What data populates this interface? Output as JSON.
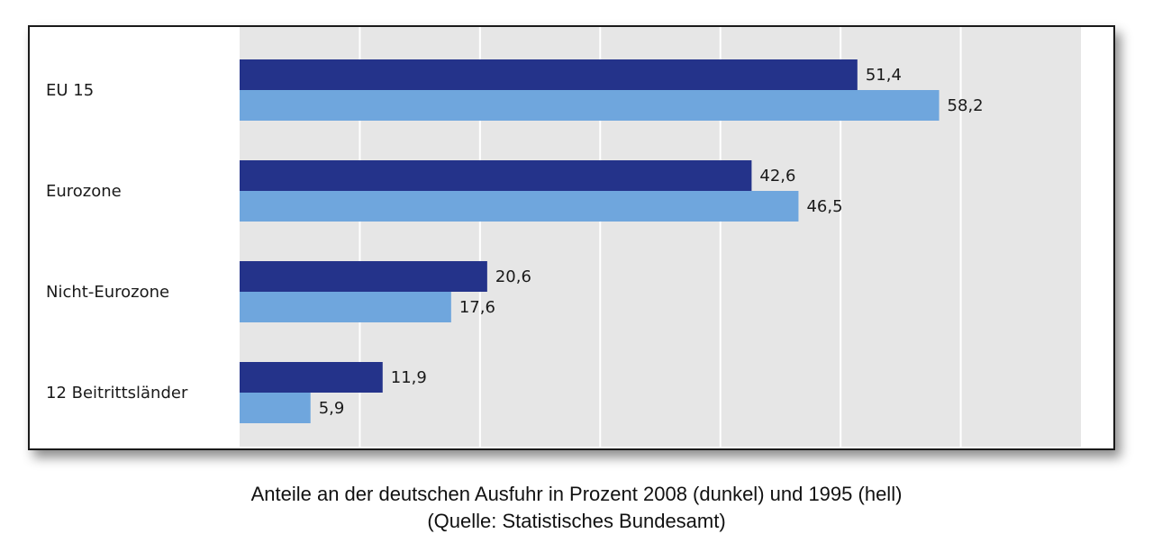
{
  "chart_data": {
    "type": "bar",
    "orientation": "horizontal",
    "categories": [
      "EU 15",
      "Eurozone",
      "Nicht-Eurozone",
      "12 Beitrittsländer"
    ],
    "series": [
      {
        "values": [
          51.4,
          42.6,
          20.6,
          11.9
        ],
        "labels": [
          "51,4",
          "42,6",
          "20,6",
          "11,9"
        ],
        "color": "#24338a"
      },
      {
        "values": [
          58.2,
          46.5,
          17.6,
          5.9
        ],
        "labels": [
          "58,2",
          "46,5",
          "17,6",
          "5,9"
        ],
        "color": "#6fa6dd"
      }
    ],
    "xlim": [
      0,
      70
    ],
    "grid": true,
    "plot_background": "#e6e6e6",
    "gridline_color": "#ffffff"
  },
  "caption": {
    "line1": "Anteile an der deutschen Ausfuhr in Prozent 2008 (dunkel) und 1995 (hell)",
    "line2": "(Quelle: Statistisches Bundesamt)"
  }
}
